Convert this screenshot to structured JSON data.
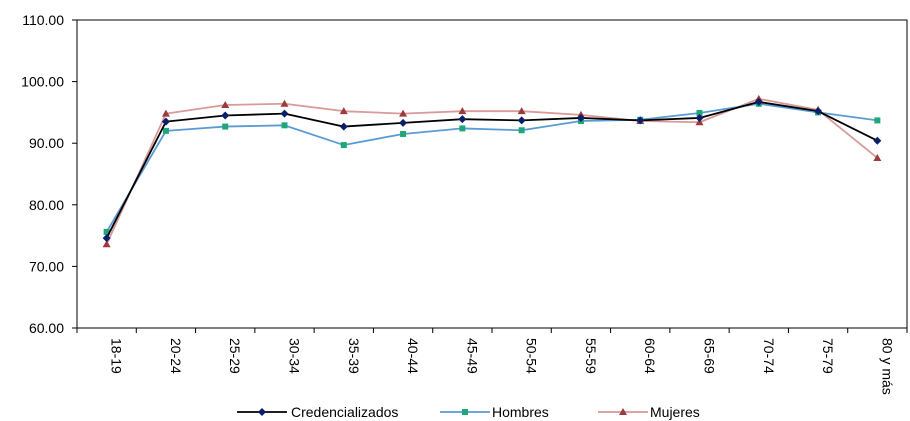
{
  "chart_data": {
    "type": "line",
    "title": "",
    "xlabel": "",
    "ylabel": "",
    "categories": [
      "18-19",
      "20-24",
      "25-29",
      "30-34",
      "35-39",
      "40-44",
      "45-49",
      "50-54",
      "55-59",
      "60-64",
      "65-69",
      "70-74",
      "75-79",
      "80 y más"
    ],
    "ylim": [
      60,
      110
    ],
    "yticks": [
      60,
      70,
      80,
      90,
      100,
      110
    ],
    "ytick_labels": [
      "60.00",
      "70.00",
      "80.00",
      "90.00",
      "100.00",
      "110.00"
    ],
    "grid": false,
    "legend_position": "bottom",
    "series": [
      {
        "name": "Credencializados",
        "color": "#000000",
        "marker": "diamond",
        "marker_color": "#0a1f6b",
        "values": [
          74.6,
          93.5,
          94.5,
          94.8,
          92.7,
          93.3,
          93.9,
          93.7,
          94.1,
          93.7,
          94.1,
          96.7,
          95.2,
          90.4
        ]
      },
      {
        "name": "Hombres",
        "color": "#5b9bd5",
        "marker": "square",
        "marker_color": "#1fa67a",
        "values": [
          75.6,
          92.0,
          92.7,
          92.9,
          89.7,
          91.5,
          92.4,
          92.1,
          93.6,
          93.8,
          94.9,
          96.4,
          95.0,
          93.7
        ]
      },
      {
        "name": "Mujeres",
        "color": "#d89a9a",
        "marker": "triangle",
        "marker_color": "#9c3b3b",
        "values": [
          73.6,
          94.8,
          96.2,
          96.4,
          95.2,
          94.8,
          95.2,
          95.2,
          94.6,
          93.6,
          93.4,
          97.2,
          95.4,
          87.6
        ]
      }
    ]
  }
}
